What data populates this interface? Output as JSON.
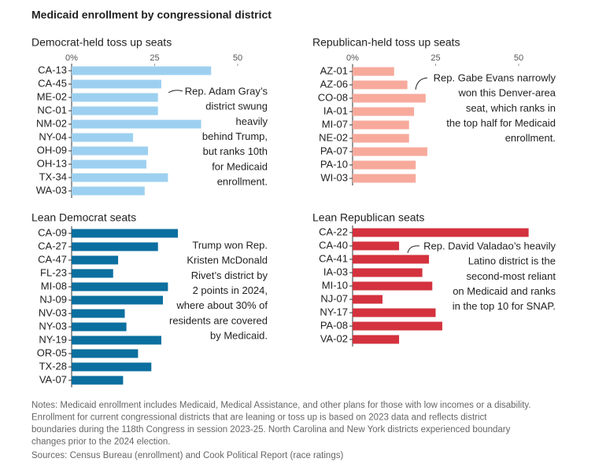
{
  "title": "Medicaid enrollment by congressional district",
  "chart_data": [
    {
      "type": "bar",
      "title": "Democrat-held toss up seats",
      "color": "#9dd0f0",
      "categories": [
        "CA-13",
        "CA-45",
        "ME-02",
        "NC-01",
        "NM-02",
        "NY-04",
        "OH-09",
        "OH-13",
        "TX-34",
        "WA-03"
      ],
      "values": [
        42,
        27,
        26,
        26,
        39,
        18.5,
        23,
        22.5,
        29,
        22
      ],
      "xlim": [
        0,
        60
      ],
      "xticks": [
        {
          "value": 0,
          "label": "0%"
        },
        25,
        50
      ],
      "annotation": [
        "Rep. Adam Gray’s",
        "district swung",
        "heavily",
        "behind Trump,",
        "but ranks 10th",
        "for Medicaid",
        "enrollment."
      ]
    },
    {
      "type": "bar",
      "title": "Republican-held toss up seats",
      "color": "#f7aa9c",
      "categories": [
        "AZ-01",
        "AZ-06",
        "CO-08",
        "IA-01",
        "MI-07",
        "NE-02",
        "PA-07",
        "PA-10",
        "WI-03"
      ],
      "values": [
        12.5,
        16.5,
        22,
        18.5,
        17,
        17,
        22.5,
        19,
        19
      ],
      "xlim": [
        0,
        60
      ],
      "xticks": [
        {
          "value": 0,
          "label": "0%"
        },
        25,
        50
      ],
      "annotation": [
        "Rep. Gabe Evans narrowly",
        "won this Denver-area",
        "seat, which ranks in",
        "the top half for Medicaid",
        "enrollment."
      ]
    },
    {
      "type": "bar",
      "title": "Lean Democrat seats",
      "color": "#0b6f9f",
      "categories": [
        "CA-09",
        "CA-27",
        "CA-47",
        "FL-23",
        "MI-08",
        "NJ-09",
        "NV-03",
        "NY-03",
        "NY-19",
        "OR-05",
        "TX-28",
        "VA-07"
      ],
      "values": [
        32,
        26,
        14,
        12.5,
        29,
        27.5,
        16,
        16.5,
        27,
        20,
        24,
        15.5
      ],
      "xlim": [
        0,
        60
      ],
      "annotation": [
        "Trump won Rep.",
        "Kristen McDonald",
        "Rivet’s district by",
        "2 points in 2024,",
        "where about 30% of",
        "residents are covered",
        "by Medicaid."
      ]
    },
    {
      "type": "bar",
      "title": "Lean Republican seats",
      "color": "#d3323e",
      "categories": [
        "CA-22",
        "CA-40",
        "CA-41",
        "IA-03",
        "MI-10",
        "NJ-07",
        "NY-17",
        "PA-08",
        "VA-02"
      ],
      "values": [
        53,
        14,
        23,
        21,
        24,
        9,
        25,
        27,
        14
      ],
      "xlim": [
        0,
        60
      ],
      "annotation": [
        "Rep. David Valadao’s heavily",
        "Latino district is the",
        "second-most reliant",
        "on Medicaid and ranks",
        "in the top 10 for SNAP."
      ]
    }
  ],
  "notes": [
    "Notes: Medicaid enrollment includes Medicaid, Medical Assistance, and other plans for those with low incomes or a disability.",
    "Enrollment for current congressional districts that are leaning or toss up is based on 2023 data and reflects district",
    "boundaries during the 118th Congress in session 2023-25. North Carolina and New York districts experienced boundary",
    "changes prior to the 2024 election."
  ],
  "sources": "Sources: Census Bureau (enrollment) and Cook Political Report (race ratings)"
}
